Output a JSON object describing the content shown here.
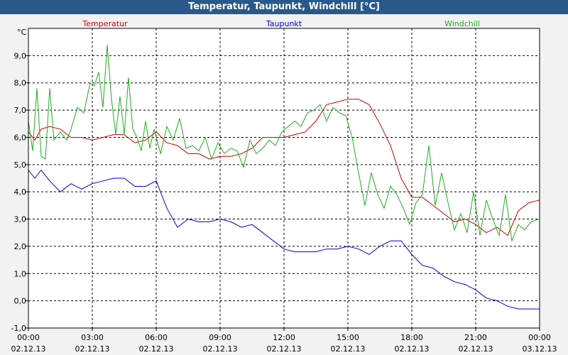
{
  "window": {
    "title": "Temperatur, Taupunkt, Windchill [°C]"
  },
  "colors": {
    "temperatur": "#cc0000",
    "taupunkt": "#0000cc",
    "windchill": "#22aa22",
    "titlebar": "#29598a"
  },
  "chart_data": {
    "type": "line",
    "title": "Temperatur, Taupunkt, Windchill [°C]",
    "ylabel": "°C",
    "xlabel": "",
    "ylim": [
      -1,
      10
    ],
    "xlim": [
      0,
      24
    ],
    "grid": true,
    "legend": "top",
    "ytick_labels": [
      "-1,0",
      "0,0",
      "1,0",
      "2,0",
      "3,0",
      "4,0",
      "5,0",
      "6,0",
      "7,0",
      "8,0",
      "9,0"
    ],
    "xticks": [
      {
        "time": "00:00",
        "date": "02.12.13"
      },
      {
        "time": "03:00",
        "date": "02.12.13"
      },
      {
        "time": "06:00",
        "date": "02.12.13"
      },
      {
        "time": "09:00",
        "date": "02.12.13"
      },
      {
        "time": "12:00",
        "date": "02.12.13"
      },
      {
        "time": "15:00",
        "date": "02.12.13"
      },
      {
        "time": "18:00",
        "date": "02.12.13"
      },
      {
        "time": "21:00",
        "date": "02.12.13"
      },
      {
        "time": "00:00",
        "date": "03.12.13"
      }
    ],
    "series": [
      {
        "name": "Temperatur",
        "color": "#cc0000",
        "x": [
          0,
          0.3,
          0.6,
          1,
          1.5,
          2,
          2.5,
          3,
          3.5,
          4,
          4.5,
          5,
          5.5,
          6,
          6.5,
          7,
          7.5,
          8,
          8.5,
          9,
          9.5,
          10,
          10.5,
          11,
          11.5,
          12,
          12.5,
          13,
          13.5,
          14,
          14.5,
          15,
          15.5,
          16,
          16.5,
          17,
          17.5,
          18,
          18.5,
          19,
          19.5,
          20,
          20.5,
          21,
          21.5,
          22,
          22.5,
          23,
          23.5,
          24
        ],
        "values": [
          6.2,
          5.9,
          6.3,
          6.4,
          6.3,
          6.0,
          6.0,
          5.9,
          6.0,
          6.1,
          6.1,
          5.8,
          5.9,
          6.2,
          5.8,
          5.7,
          5.4,
          5.4,
          5.2,
          5.3,
          5.3,
          5.4,
          5.6,
          6.0,
          6.0,
          6.0,
          6.1,
          6.2,
          6.6,
          7.2,
          7.3,
          7.4,
          7.4,
          7.2,
          6.5,
          5.7,
          4.5,
          3.8,
          3.8,
          3.5,
          3.2,
          2.9,
          3.0,
          2.8,
          2.5,
          2.7,
          2.4,
          3.3,
          3.6,
          3.7
        ]
      },
      {
        "name": "Taupunkt",
        "color": "#0000cc",
        "x": [
          0,
          0.3,
          0.6,
          1,
          1.5,
          2,
          2.5,
          3,
          3.5,
          4,
          4.5,
          5,
          5.5,
          6,
          6.5,
          7,
          7.5,
          8,
          8.5,
          9,
          9.5,
          10,
          10.5,
          11,
          11.5,
          12,
          12.5,
          13,
          13.5,
          14,
          14.5,
          15,
          15.5,
          16,
          16.5,
          17,
          17.5,
          18,
          18.5,
          19,
          19.5,
          20,
          20.5,
          21,
          21.5,
          22,
          22.5,
          23,
          23.5,
          24
        ],
        "values": [
          4.8,
          4.5,
          4.8,
          4.4,
          4.0,
          4.3,
          4.1,
          4.3,
          4.4,
          4.5,
          4.5,
          4.2,
          4.2,
          4.4,
          3.4,
          2.7,
          3.0,
          2.9,
          2.9,
          3.0,
          2.9,
          2.7,
          2.8,
          2.5,
          2.2,
          1.9,
          1.8,
          1.8,
          1.8,
          1.9,
          1.9,
          2.0,
          1.9,
          1.7,
          2.0,
          2.2,
          2.2,
          1.7,
          1.3,
          1.2,
          0.9,
          0.7,
          0.6,
          0.4,
          0.1,
          0.0,
          -0.2,
          -0.3,
          -0.3,
          -0.3
        ]
      },
      {
        "name": "Windchill",
        "color": "#22aa22",
        "x": [
          0,
          0.2,
          0.4,
          0.6,
          0.8,
          1,
          1.2,
          1.5,
          1.8,
          2,
          2.3,
          2.6,
          2.9,
          3.1,
          3.3,
          3.5,
          3.7,
          3.9,
          4.1,
          4.3,
          4.5,
          4.7,
          4.9,
          5.1,
          5.3,
          5.5,
          5.7,
          5.9,
          6.2,
          6.5,
          6.8,
          7.1,
          7.4,
          7.7,
          8.0,
          8.3,
          8.6,
          8.9,
          9.2,
          9.5,
          9.8,
          10.1,
          10.4,
          10.7,
          11.0,
          11.3,
          11.6,
          11.9,
          12.2,
          12.5,
          12.8,
          13.1,
          13.4,
          13.7,
          14.0,
          14.3,
          14.6,
          14.9,
          15.2,
          15.5,
          15.8,
          16.1,
          16.4,
          16.7,
          17.0,
          17.3,
          17.6,
          17.9,
          18.2,
          18.5,
          18.8,
          19.1,
          19.4,
          19.7,
          20.0,
          20.3,
          20.6,
          20.9,
          21.2,
          21.5,
          21.8,
          22.1,
          22.4,
          22.7,
          23.0,
          23.3,
          23.6,
          24.0
        ],
        "values": [
          6.6,
          5.5,
          7.8,
          5.3,
          5.2,
          7.8,
          5.9,
          6.2,
          5.9,
          6.3,
          7.1,
          6.9,
          8.0,
          7.9,
          8.4,
          7.1,
          9.4,
          7.4,
          6.1,
          7.5,
          6.1,
          8.2,
          6.3,
          6.0,
          5.5,
          6.6,
          5.6,
          6.3,
          5.4,
          6.4,
          5.9,
          6.7,
          5.6,
          5.7,
          5.5,
          6.0,
          5.2,
          5.8,
          5.4,
          5.6,
          5.5,
          4.9,
          5.9,
          5.4,
          5.6,
          5.9,
          5.7,
          6.2,
          6.4,
          6.6,
          6.4,
          6.9,
          7.0,
          7.2,
          6.6,
          7.1,
          6.9,
          6.8,
          6.0,
          4.7,
          3.5,
          4.7,
          3.9,
          3.4,
          4.2,
          3.9,
          3.4,
          2.8,
          3.6,
          3.9,
          5.7,
          3.5,
          4.7,
          3.6,
          2.6,
          3.2,
          2.5,
          4.0,
          2.4,
          3.7,
          3.0,
          2.4,
          3.9,
          2.2,
          2.8,
          2.6,
          2.9,
          3.0
        ]
      }
    ]
  }
}
